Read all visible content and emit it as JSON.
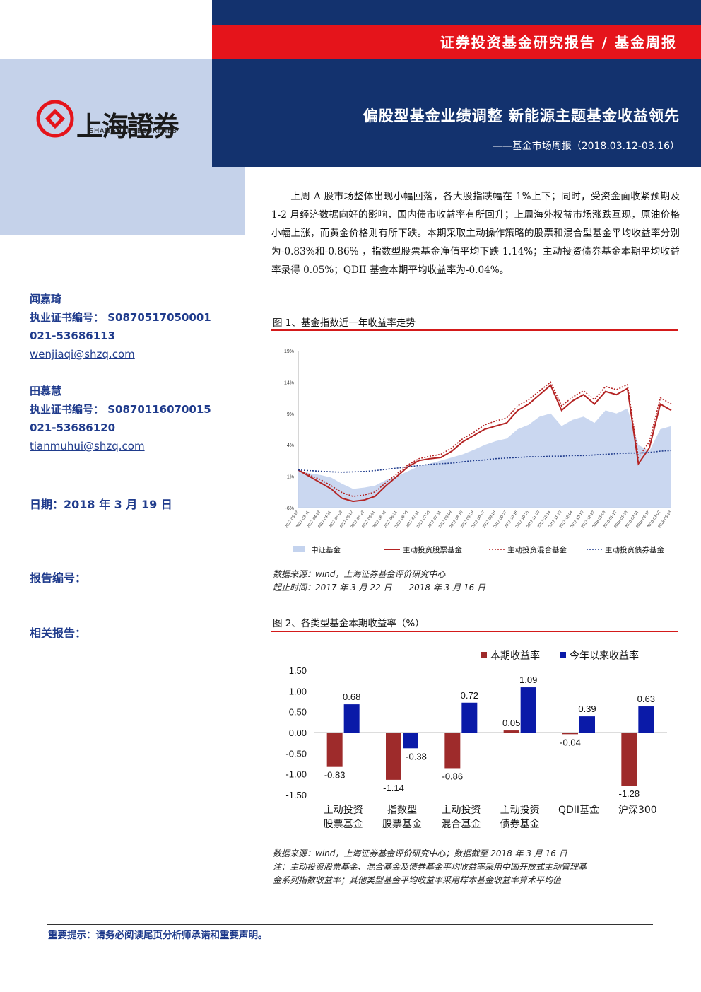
{
  "header": {
    "report_type": "证券投资基金研究报告 / 基金周报",
    "title": "偏股型基金业绩调整 新能源主题基金收益领先",
    "subtitle": "——基金市场周报（2018.03.12-03.16）"
  },
  "logo": {
    "cn": "上海證券",
    "en": "SHANGHAI SECURITIES"
  },
  "analysts": [
    {
      "name": "闻嘉琦",
      "cert": "执业证书编号：  S0870517050001",
      "phone": "021-53686113",
      "email": "wenjiaqi@shzq.com"
    },
    {
      "name": "田慕慧",
      "cert": "执业证书编号：  S0870116070015",
      "phone": "021-53686120",
      "email": "tianmuhui@shzq.com"
    }
  ],
  "date_label": "日期：2018 年 3 月 19 日",
  "report_no_label": "报告编号：",
  "related_label": "相关报告：",
  "intro": "上周 A 股市场整体出现小幅回落，各大股指跌幅在 1%上下；同时，受资金面收紧预期及 1-2 月经济数据向好的影响，国内债市收益率有所回升；上周海外权益市场涨跌互现，原油价格小幅上涨，而黄金价格则有所下跌。本期采取主动操作策略的股票和混合型基金平均收益率分别为-0.83%和-0.86% ，指数型股票基金净值平均下跌 1.14%；主动投资债券基金本期平均收益率录得 0.05%；QDII 基金本期平均收益率为-0.04%。",
  "fig1": {
    "title": "图 1、基金指数近一年收益率走势",
    "source1": "数据来源：wind，上海证券基金评价研究中心",
    "source2": "起止时间：2017 年 3 月 22 日——2018 年 3 月 16 日"
  },
  "fig2": {
    "title": "图 2、各类型基金本期收益率（%）",
    "source1": "数据来源：wind，上海证券基金评价研究中心；数据截至 2018 年 3 月 16 日",
    "source2": "注：主动投资股票基金、混合基金及债券基金平均收益率采用中国开放式主动管理基",
    "source3": "金系列指数收益率；其他类型基金平均收益率采用样本基金收益率算术平均值"
  },
  "footer": "重要提示：请务必阅读尾页分析师承诺和重要声明。",
  "colors": {
    "navy": "#13326e",
    "red": "#e5141b",
    "bar_red": "#9e2b2b",
    "bar_blue": "#0a1aa8",
    "area": "#c4d3ee"
  },
  "chart_data": [
    {
      "type": "line",
      "title": "",
      "yticks": [
        "19%",
        "14%",
        "9%",
        "4%",
        "-1%",
        "-6%"
      ],
      "ylim": [
        -6,
        19
      ],
      "x": [
        "2017-03-22",
        "2017-03-31",
        "2017-04-12",
        "2017-04-21",
        "2017-05-03",
        "2017-05-12",
        "2017-05-22",
        "2017-06-01",
        "2017-06-12",
        "2017-06-21",
        "2017-06-30",
        "2017-07-11",
        "2017-07-20",
        "2017-07-31",
        "2017-08-09",
        "2017-08-18",
        "2017-08-29",
        "2017-09-07",
        "2017-09-18",
        "2017-09-27",
        "2017-10-16",
        "2017-10-25",
        "2017-11-03",
        "2017-11-14",
        "2017-11-23",
        "2017-12-04",
        "2017-12-13",
        "2017-12-22",
        "2018-01-03",
        "2018-01-12",
        "2018-01-23",
        "2018-02-01",
        "2018-02-12",
        "2018-03-02",
        "2018-03-13"
      ],
      "xtick_labels": [
        "2017-03-22",
        "2017-03-31",
        "2017-04-12",
        "2017-04-21",
        "2017-05-03",
        "2017-05-12",
        "2017-05-22",
        "2017-06-01",
        "2017-06-12",
        "2017-06-21",
        "2017-06-30",
        "2017-07-11",
        "2017-07-20",
        "2017-07-31",
        "2017-08-09",
        "2017-08-18",
        "2017-08-29",
        "2017-09-07",
        "2017-09-18",
        "2017-09-27",
        "2017-10-16",
        "2017-10-25",
        "2017-11-03",
        "2017-11-14",
        "2017-11-23",
        "2017-12-04",
        "2017-12-13",
        "2017-12-22",
        "2018-01-03",
        "2018-01-12",
        "2018-01-23",
        "2018-02-01",
        "2018-02-12",
        "2018-03-02",
        "2018-03-13"
      ],
      "legend_position": "bottom",
      "series": [
        {
          "name": "中证基金",
          "style": "area",
          "color": "#c4d3ee",
          "values": [
            0,
            -0.5,
            -0.8,
            -1.2,
            -2.2,
            -3.0,
            -2.8,
            -2.5,
            -1.6,
            -1.0,
            -0.2,
            0.6,
            1.0,
            1.5,
            2.0,
            2.5,
            3.2,
            4.0,
            4.6,
            5.0,
            6.5,
            7.2,
            8.5,
            9.0,
            7.0,
            8.0,
            8.5,
            7.5,
            9.5,
            9.0,
            9.8,
            4.0,
            3.0,
            6.5,
            7.0
          ]
        },
        {
          "name": "主动投资股票基金",
          "style": "solid",
          "color": "#b42323",
          "values": [
            0,
            -1.0,
            -2.0,
            -3.0,
            -4.5,
            -5.0,
            -4.8,
            -4.2,
            -2.5,
            -1.0,
            0.5,
            1.5,
            1.8,
            2.0,
            3.0,
            4.5,
            5.5,
            6.5,
            7.0,
            7.5,
            9.5,
            10.5,
            12.0,
            13.5,
            9.5,
            11.0,
            12.0,
            10.5,
            12.5,
            12.0,
            13.0,
            1.0,
            3.5,
            10.5,
            9.5
          ]
        },
        {
          "name": "主动投资混合基金",
          "style": "dotted",
          "color": "#b42323",
          "values": [
            0,
            -0.8,
            -1.5,
            -2.5,
            -3.6,
            -4.2,
            -4.0,
            -3.5,
            -2.0,
            -0.6,
            0.8,
            1.8,
            2.2,
            2.5,
            3.5,
            5.0,
            6.0,
            7.2,
            7.8,
            8.3,
            10.2,
            11.2,
            12.6,
            14.0,
            10.2,
            11.6,
            12.6,
            11.2,
            13.3,
            12.8,
            13.6,
            2.0,
            4.5,
            11.5,
            10.5
          ]
        },
        {
          "name": "主动投资债券基金",
          "style": "dotted",
          "color": "#1f3b8c",
          "values": [
            0,
            -0.1,
            -0.2,
            -0.3,
            -0.35,
            -0.3,
            -0.25,
            -0.1,
            0.1,
            0.3,
            0.5,
            0.7,
            0.9,
            1.0,
            1.1,
            1.3,
            1.5,
            1.6,
            1.8,
            1.9,
            2.0,
            2.1,
            2.1,
            2.2,
            2.2,
            2.3,
            2.3,
            2.4,
            2.5,
            2.6,
            2.7,
            2.7,
            2.8,
            3.0,
            3.1
          ]
        }
      ]
    },
    {
      "type": "bar",
      "title": "",
      "categories": [
        [
          "主动投资",
          "股票基金"
        ],
        [
          "指数型",
          "股票基金"
        ],
        [
          "主动投资",
          "混合基金"
        ],
        [
          "主动投资",
          "债券基金"
        ],
        [
          "QDII基金"
        ],
        [
          "沪深300"
        ]
      ],
      "ylim": [
        -1.5,
        1.5
      ],
      "yticks": [
        "1.50",
        "1.00",
        "0.50",
        "0.00",
        "-0.50",
        "-1.00",
        "-1.50"
      ],
      "legend_position": "top-right",
      "series": [
        {
          "name": "本期收益率",
          "color": "#9e2b2b",
          "values": [
            -0.83,
            -1.14,
            -0.86,
            0.05,
            -0.04,
            -1.28
          ],
          "labels": [
            "-0.83",
            "-1.14",
            "-0.86",
            "0.05",
            "-0.04",
            "-1.28"
          ]
        },
        {
          "name": "今年以来收益率",
          "color": "#0a1aa8",
          "values": [
            0.68,
            -0.38,
            0.72,
            1.09,
            0.39,
            0.63
          ],
          "labels": [
            "0.68",
            "-0.38",
            "0.72",
            "1.09",
            "0.39",
            "0.63"
          ]
        }
      ]
    }
  ]
}
